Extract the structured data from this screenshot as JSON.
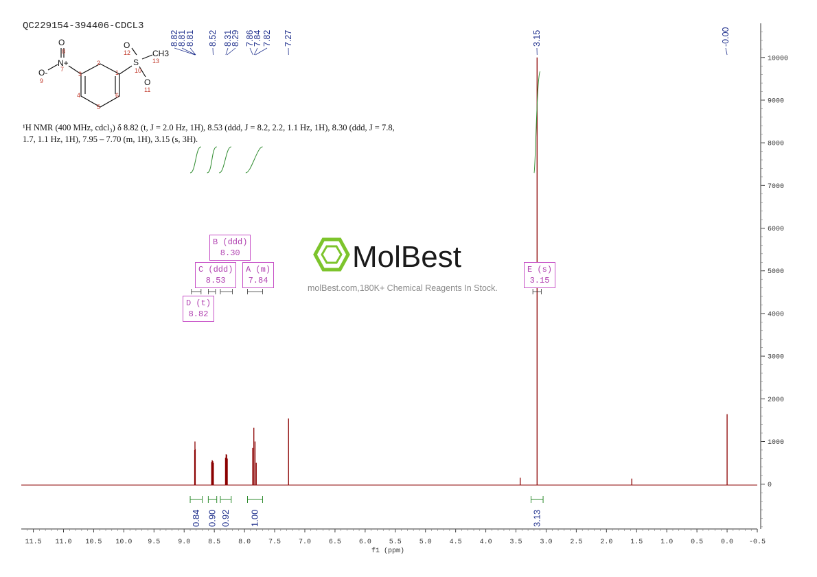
{
  "sample_id": "QC229154-394406-CDCL3",
  "nmr_description": "¹H NMR (400 MHz, cdcl₃) δ 8.82 (t, J = 2.0 Hz, 1H), 8.53 (ddd, J = 8.2, 2.2, 1.1 Hz, 1H), 8.30 (ddd, J = 7.8, 1.7, 1.1 Hz, 1H), 7.95 – 7.70 (m, 1H), 3.15 (s, 3H).",
  "watermark": {
    "brand": "MolBest",
    "tagline": "molBest.com,180K+ Chemical Reagents In Stock."
  },
  "structure": {
    "atoms": [
      "O",
      "N+",
      "O-",
      "S",
      "O",
      "O",
      "CH3"
    ],
    "atom_numbers": [
      "1",
      "2",
      "3",
      "4",
      "5",
      "6",
      "7",
      "8",
      "9",
      "10",
      "11",
      "12",
      "13"
    ]
  },
  "multiplets": [
    {
      "id": "B",
      "type": "ddd",
      "shift": "8.30"
    },
    {
      "id": "C",
      "type": "ddd",
      "shift": "8.53"
    },
    {
      "id": "A",
      "type": "m",
      "shift": "7.84"
    },
    {
      "id": "D",
      "type": "t",
      "shift": "8.82"
    },
    {
      "id": "E",
      "type": "s",
      "shift": "3.15"
    }
  ],
  "chart_data": {
    "type": "line",
    "xlabel": "f1 (ppm)",
    "x_reversed": true,
    "xlim": [
      11.7,
      -0.5
    ],
    "ylim": [
      -1050,
      10800
    ],
    "x_ticks": [
      "11.5",
      "11.0",
      "10.5",
      "10.0",
      "9.5",
      "9.0",
      "8.5",
      "8.0",
      "7.5",
      "7.0",
      "6.5",
      "6.0",
      "5.5",
      "5.0",
      "4.5",
      "4.0",
      "3.5",
      "3.0",
      "2.5",
      "2.0",
      "1.5",
      "1.0",
      "0.5",
      "0.0",
      "-0.5"
    ],
    "y_ticks": [
      "10000",
      "9000",
      "8000",
      "7000",
      "6000",
      "5000",
      "4000",
      "3000",
      "2000",
      "1000",
      "0"
    ],
    "peaks": [
      {
        "x": 8.826,
        "y": 800
      },
      {
        "x": 8.821,
        "y": 1000
      },
      {
        "x": 8.816,
        "y": 820
      },
      {
        "x": 8.545,
        "y": 520
      },
      {
        "x": 8.535,
        "y": 560
      },
      {
        "x": 8.525,
        "y": 540
      },
      {
        "x": 8.515,
        "y": 500
      },
      {
        "x": 8.315,
        "y": 620
      },
      {
        "x": 8.305,
        "y": 700
      },
      {
        "x": 8.295,
        "y": 690
      },
      {
        "x": 8.285,
        "y": 600
      },
      {
        "x": 7.865,
        "y": 850
      },
      {
        "x": 7.845,
        "y": 1320
      },
      {
        "x": 7.825,
        "y": 1000
      },
      {
        "x": 7.805,
        "y": 500
      },
      {
        "x": 7.27,
        "y": 1540
      },
      {
        "x": 3.15,
        "y": 10000
      },
      {
        "x": 3.43,
        "y": 150
      },
      {
        "x": 1.58,
        "y": 130
      },
      {
        "x": 0.0,
        "y": 1640
      }
    ],
    "peak_labels": [
      "8.82",
      "8.81",
      "8.81",
      "8.52",
      "8.31",
      "8.29",
      "7.86",
      "7.84",
      "7.82",
      "7.27",
      "3.15",
      "-0.00"
    ],
    "peak_label_x": [
      8.82,
      8.81,
      8.81,
      8.52,
      8.31,
      8.29,
      7.86,
      7.84,
      7.82,
      7.27,
      3.15,
      0.0
    ],
    "integrals": [
      {
        "from": 8.9,
        "to": 8.7,
        "value": "0.84"
      },
      {
        "from": 8.6,
        "to": 8.46,
        "value": "0.90"
      },
      {
        "from": 8.4,
        "to": 8.22,
        "value": "0.92"
      },
      {
        "from": 7.95,
        "to": 7.7,
        "value": "1.00"
      },
      {
        "from": 3.25,
        "to": 3.05,
        "value": "3.13"
      }
    ],
    "colors": {
      "spectrum": "#8b0000",
      "integral": "#2e8b2e",
      "label": "#1e2f8c",
      "box": "#c64fc6"
    }
  }
}
